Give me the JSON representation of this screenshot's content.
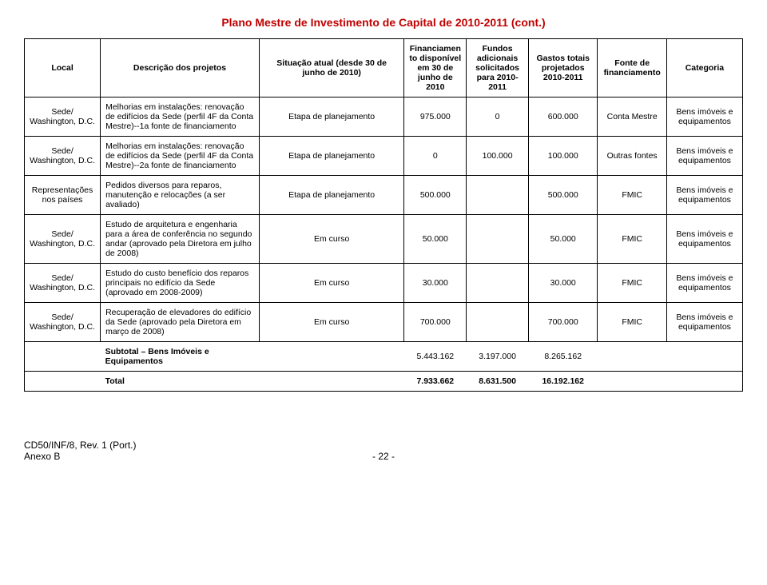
{
  "title": "Plano Mestre de Investimento de Capital de 2010-2011 (cont.)",
  "headers": {
    "local": "Local",
    "descricao": "Descrição dos projetos",
    "situacao": "Situação atual (desde 30 de junho de 2010)",
    "financ": "Financiamento disponível em 30 de junho de 2010",
    "fundos": "Fundos adicionais solicitados para 2010-2011",
    "gastos": "Gastos totais projetados 2010-2011",
    "fonte": "Fonte de financiamento",
    "categoria": "Categoria"
  },
  "rows": [
    {
      "local": "Sede/ Washington, D.C.",
      "desc": "Melhorias em instalações: renovação de edifícios da Sede (perfil 4F da Conta Mestre)--1a fonte de financiamento",
      "situacao": "Etapa de planejamento",
      "financ": "975.000",
      "fundos": "0",
      "gastos": "600.000",
      "fonte": "Conta Mestre",
      "categoria": "Bens imóveis e equipamentos"
    },
    {
      "local": "Sede/ Washington, D.C.",
      "desc": "Melhorias em instalações: renovação de edifícios da Sede (perfil 4F da Conta Mestre)--2a fonte de financiamento",
      "situacao": "Etapa de planejamento",
      "financ": "0",
      "fundos": "100.000",
      "gastos": "100.000",
      "fonte": "Outras fontes",
      "categoria": "Bens imóveis e equipamentos"
    },
    {
      "local": "Representações nos países",
      "desc": "Pedidos diversos para reparos, manutenção e relocações (a ser avaliado)",
      "situacao": "Etapa de planejamento",
      "financ": "500.000",
      "fundos": "",
      "gastos": "500.000",
      "fonte": "FMIC",
      "categoria": "Bens imóveis e equipamentos"
    },
    {
      "local": "Sede/ Washington, D.C.",
      "desc": "Estudo de arquitetura e engenharia para a área de conferência no segundo andar (aprovado pela Diretora em julho de 2008)",
      "situacao": "Em curso",
      "financ": "50.000",
      "fundos": "",
      "gastos": "50.000",
      "fonte": "FMIC",
      "categoria": "Bens imóveis e equipamentos"
    },
    {
      "local": "Sede/ Washington, D.C.",
      "desc": "Estudo do custo benefício dos reparos principais no edifício da Sede (aprovado em 2008-2009)",
      "situacao": "Em curso",
      "financ": "30.000",
      "fundos": "",
      "gastos": "30.000",
      "fonte": "FMIC",
      "categoria": "Bens imóveis e equipamentos"
    },
    {
      "local": "Sede/ Washington, D.C.",
      "desc": "Recuperação de elevadores do edifício da Sede (aprovado pela Diretora em março de 2008)",
      "situacao": "Em curso",
      "financ": "700.000",
      "fundos": "",
      "gastos": "700.000",
      "fonte": "FMIC",
      "categoria": "Bens imóveis e equipamentos"
    }
  ],
  "subtotal": {
    "label": "Subtotal – Bens Imóveis e Equipamentos",
    "financ": "5.443.162",
    "fundos": "3.197.000",
    "gastos": "8.265.162"
  },
  "total": {
    "label": "Total",
    "financ": "7.933.662",
    "fundos": "8.631.500",
    "gastos": "16.192.162"
  },
  "footer": {
    "ref": "CD50/INF/8, Rev. 1 (Port.)",
    "anexo": "Anexo B",
    "page": "- 22 -"
  }
}
